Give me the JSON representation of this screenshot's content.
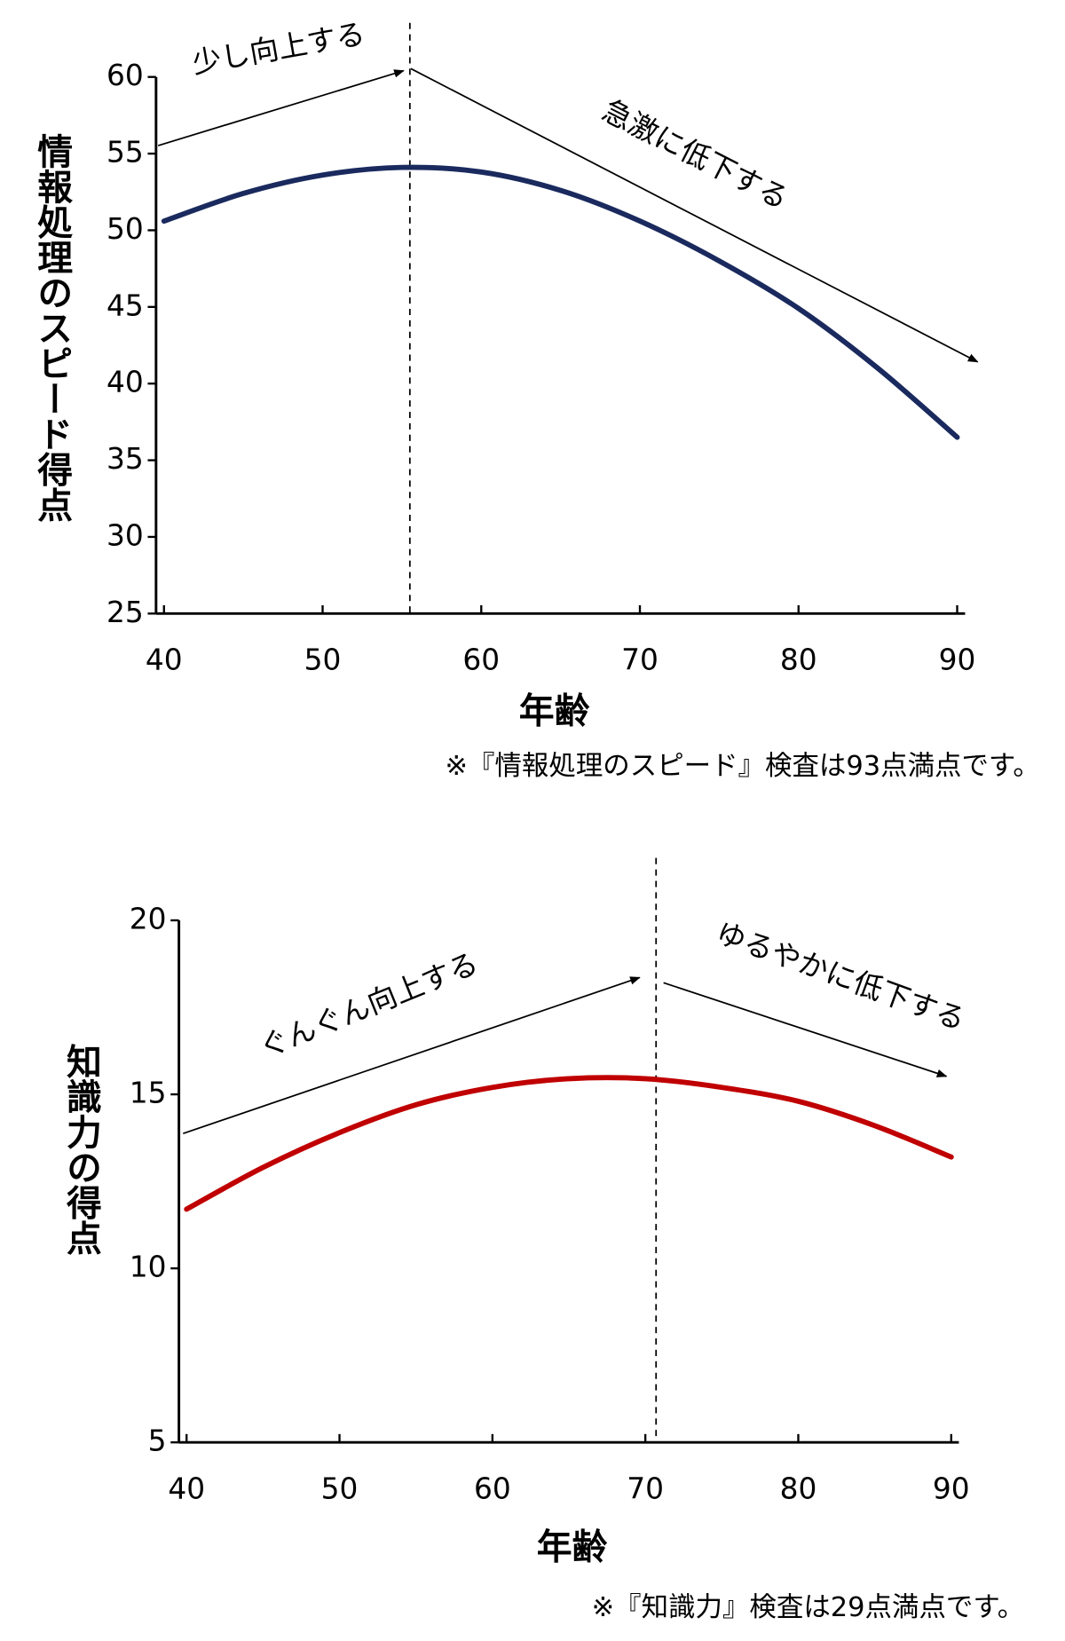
{
  "chart_data": [
    {
      "type": "line",
      "y_label": "情報処理のスピード得点",
      "x_label": "年齢",
      "note": "※『情報処理のスピード』検査は93点満点です。",
      "annotations": [
        "少し向上する",
        "急激に低下する"
      ],
      "x": [
        40,
        45,
        50,
        55,
        60,
        65,
        70,
        75,
        80,
        85,
        90
      ],
      "series": [
        {
          "color": "#1a2a5e",
          "values": [
            50.6,
            52.4,
            53.6,
            54.1,
            53.8,
            52.6,
            50.6,
            48.0,
            44.9,
            41.0,
            36.5
          ]
        }
      ],
      "vline": 55.5,
      "xlim": [
        39.5,
        90.5
      ],
      "xticks": [
        40,
        50,
        60,
        70,
        80,
        90
      ],
      "ylim": [
        25,
        60
      ],
      "yticks": [
        25,
        30,
        35,
        40,
        45,
        50,
        55,
        60
      ]
    },
    {
      "type": "line",
      "y_label": "知識力の得点",
      "x_label": "年齢",
      "note": "※『知識力』検査は29点満点です。",
      "annotations": [
        "ぐんぐん向上する",
        "ゆるやかに低下する"
      ],
      "x": [
        40,
        45,
        50,
        55,
        60,
        65,
        70,
        75,
        80,
        85,
        90
      ],
      "series": [
        {
          "color": "#c00000",
          "values": [
            11.7,
            12.9,
            13.9,
            14.7,
            15.2,
            15.45,
            15.45,
            15.2,
            14.8,
            14.1,
            13.2
          ]
        }
      ],
      "vline": 70.7,
      "xlim": [
        39.5,
        90.5
      ],
      "xticks": [
        40,
        50,
        60,
        70,
        80,
        90
      ],
      "ylim": [
        5,
        20
      ],
      "yticks": [
        5,
        10,
        15,
        20
      ]
    }
  ]
}
